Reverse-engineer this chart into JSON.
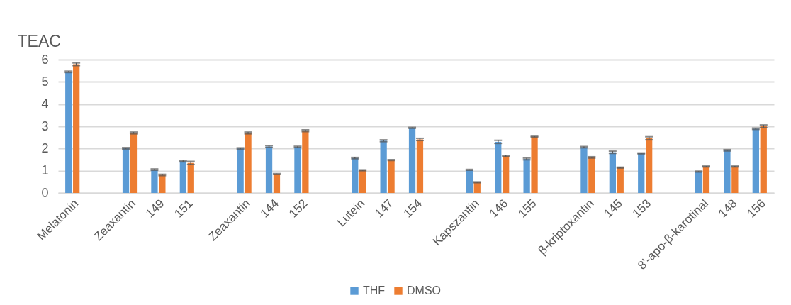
{
  "chart_data": {
    "type": "bar",
    "ylabel": "TEAC",
    "categories": [
      "Melatonin",
      null,
      "Zeaxantin",
      "149",
      "151",
      null,
      "Zeaxantin",
      "144",
      "152",
      null,
      "Lutein",
      "147",
      "154",
      null,
      "Kapszantin",
      "146",
      "155",
      null,
      "β-kriptoxantin",
      "145",
      "153",
      null,
      "8'-apo-β-karotinal",
      "148",
      "156"
    ],
    "series": [
      {
        "name": "THF",
        "color": "#5b9bd5",
        "values": [
          5.45,
          null,
          2.01,
          1.05,
          1.43,
          null,
          2.0,
          2.09,
          2.07,
          null,
          1.57,
          2.35,
          2.93,
          null,
          1.04,
          2.3,
          1.53,
          null,
          2.06,
          1.83,
          1.78,
          null,
          0.96,
          1.92,
          2.89
        ],
        "errors": [
          0.03,
          null,
          0.03,
          0.03,
          0.03,
          null,
          0.03,
          0.04,
          0.03,
          null,
          0.03,
          0.04,
          0.02,
          null,
          0.02,
          0.07,
          0.04,
          null,
          0.03,
          0.05,
          0.02,
          null,
          0.02,
          0.03,
          0.03
        ]
      },
      {
        "name": "DMSO",
        "color": "#ed7d31",
        "values": [
          5.79,
          null,
          2.7,
          0.81,
          1.35,
          null,
          2.7,
          0.85,
          2.8,
          null,
          1.02,
          1.48,
          2.41,
          null,
          0.48,
          1.66,
          2.53,
          null,
          1.6,
          1.14,
          2.46,
          null,
          1.19,
          1.19,
          3.0
        ],
        "errors": [
          0.06,
          null,
          0.04,
          0.03,
          0.07,
          null,
          0.04,
          0.02,
          0.04,
          null,
          0.02,
          0.02,
          0.05,
          null,
          0.02,
          0.03,
          0.02,
          null,
          0.03,
          0.02,
          0.07,
          null,
          0.02,
          0.02,
          0.06
        ]
      }
    ],
    "ylim": [
      0,
      6
    ],
    "yticks": [
      0,
      1,
      2,
      3,
      4,
      5,
      6
    ],
    "grid": "y",
    "legend": "bottom"
  }
}
